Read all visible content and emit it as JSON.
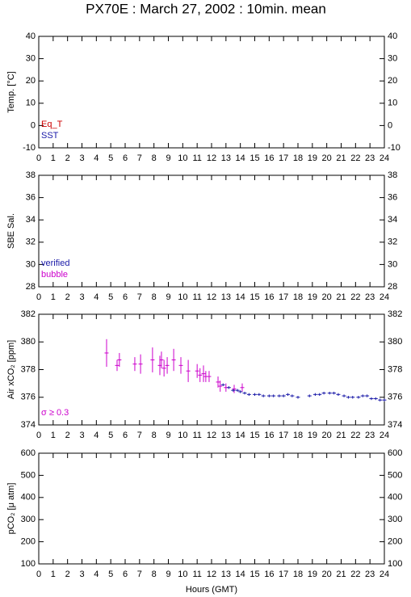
{
  "title": "PX70E : March 27, 2002 : 10min. mean",
  "xlabel": "Hours (GMT)",
  "chart_data": [
    {
      "type": "scatter",
      "ylabel": "Temp. [°C]",
      "xlim": [
        0,
        24
      ],
      "xticks": [
        0,
        1,
        2,
        3,
        4,
        5,
        6,
        7,
        8,
        9,
        10,
        11,
        12,
        13,
        14,
        15,
        16,
        17,
        18,
        19,
        20,
        21,
        22,
        23,
        24
      ],
      "ylim": [
        -10,
        40
      ],
      "yticks": [
        -10,
        0,
        10,
        20,
        30,
        40
      ],
      "series": [
        {
          "name": "Eq_T",
          "color": "#cc0000",
          "x": [],
          "values": []
        },
        {
          "name": "SST",
          "color": "#1a1aa8",
          "x": [],
          "values": []
        }
      ]
    },
    {
      "type": "scatter",
      "ylabel": "SBE Sal.",
      "xlim": [
        0,
        24
      ],
      "xticks": [
        0,
        1,
        2,
        3,
        4,
        5,
        6,
        7,
        8,
        9,
        10,
        11,
        12,
        13,
        14,
        15,
        16,
        17,
        18,
        19,
        20,
        21,
        22,
        23,
        24
      ],
      "ylim": [
        28,
        38
      ],
      "yticks": [
        28,
        30,
        32,
        34,
        36,
        38
      ],
      "series": [
        {
          "name": "verified",
          "color": "#1a1aa8",
          "x": [],
          "values": []
        },
        {
          "name": "bubble",
          "color": "#cc00cc",
          "x": [],
          "values": []
        }
      ]
    },
    {
      "type": "scatter",
      "ylabel": "Air xCO₂ [ppm]",
      "xlim": [
        0,
        24
      ],
      "xticks": [
        0,
        1,
        2,
        3,
        4,
        5,
        6,
        7,
        8,
        9,
        10,
        11,
        12,
        13,
        14,
        15,
        16,
        17,
        18,
        19,
        20,
        21,
        22,
        23,
        24
      ],
      "ylim": [
        374,
        382
      ],
      "yticks": [
        374,
        376,
        378,
        380,
        382
      ],
      "series": [
        {
          "name": "σ ≥ 0.3",
          "color": "#cc00cc",
          "x": [
            4.71,
            5.44,
            5.6,
            6.67,
            7.07,
            7.9,
            8.41,
            8.52,
            8.7,
            8.92,
            9.37,
            9.87,
            10.38,
            11.0,
            11.2,
            11.44,
            11.6,
            11.83,
            12.45,
            12.6,
            13.0,
            13.57,
            14.13
          ],
          "values": [
            379.2,
            378.3,
            378.7,
            378.4,
            378.4,
            378.7,
            378.3,
            378.7,
            378.1,
            378.3,
            378.7,
            378.3,
            377.9,
            377.9,
            377.6,
            377.7,
            377.5,
            377.5,
            377.1,
            376.8,
            376.7,
            376.6,
            376.7
          ],
          "errors": [
            1.0,
            0.4,
            0.5,
            0.5,
            0.7,
            0.9,
            0.7,
            0.6,
            0.6,
            0.6,
            0.8,
            0.6,
            0.8,
            0.5,
            0.5,
            0.6,
            0.4,
            0.4,
            0.4,
            0.4,
            0.3,
            0.3,
            0.3
          ]
        },
        {
          "color": "#1a1aa8",
          "x": [
            12.8,
            13.2,
            13.5,
            13.8,
            14.0,
            14.3,
            14.6,
            15.0,
            15.3,
            15.6,
            16.0,
            16.3,
            16.7,
            17.0,
            17.3,
            17.6,
            18.0,
            18.8,
            19.2,
            19.5,
            19.8,
            20.2,
            20.5,
            20.8,
            21.2,
            21.5,
            21.8,
            22.2,
            22.5,
            22.8,
            23.1,
            23.4,
            23.7,
            24.0
          ],
          "values": [
            376.9,
            376.7,
            376.5,
            376.5,
            376.4,
            376.3,
            376.2,
            376.2,
            376.2,
            376.1,
            376.1,
            376.1,
            376.1,
            376.1,
            376.2,
            376.1,
            376.0,
            376.1,
            376.2,
            376.2,
            376.3,
            376.3,
            376.3,
            376.2,
            376.1,
            376.0,
            376.0,
            376.0,
            376.1,
            376.1,
            375.9,
            375.9,
            375.8,
            375.8
          ],
          "errors": [
            0.1,
            0.1,
            0.1,
            0.1,
            0.1,
            0.1,
            0.1,
            0.1,
            0.1,
            0.1,
            0.1,
            0.1,
            0.1,
            0.1,
            0.1,
            0.1,
            0.1,
            0.1,
            0.1,
            0.1,
            0.1,
            0.1,
            0.1,
            0.1,
            0.1,
            0.1,
            0.1,
            0.1,
            0.1,
            0.1,
            0.1,
            0.1,
            0.1,
            0.1
          ]
        }
      ]
    },
    {
      "type": "scatter",
      "ylabel": "pCO₂ [μ atm]",
      "xlim": [
        0,
        24
      ],
      "xticks": [
        0,
        1,
        2,
        3,
        4,
        5,
        6,
        7,
        8,
        9,
        10,
        11,
        12,
        13,
        14,
        15,
        16,
        17,
        18,
        19,
        20,
        21,
        22,
        23,
        24
      ],
      "ylim": [
        100,
        600
      ],
      "yticks": [
        100,
        200,
        300,
        400,
        500,
        600
      ],
      "series": []
    }
  ]
}
